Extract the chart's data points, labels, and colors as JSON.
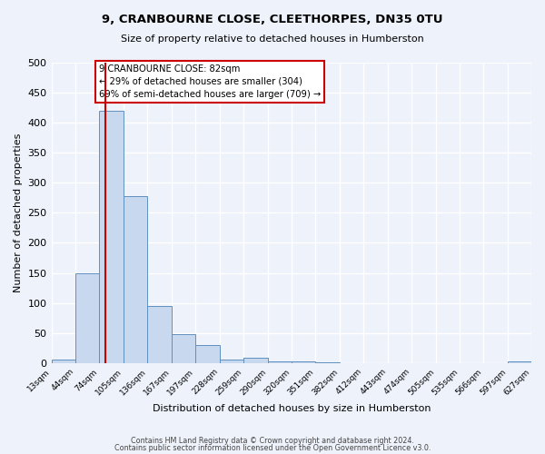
{
  "title": "9, CRANBOURNE CLOSE, CLEETHORPES, DN35 0TU",
  "subtitle": "Size of property relative to detached houses in Humberston",
  "xlabel": "Distribution of detached houses by size in Humberston",
  "ylabel": "Number of detached properties",
  "bar_edges": [
    13,
    44,
    74,
    105,
    136,
    167,
    197,
    228,
    259,
    290,
    320,
    351,
    382,
    412,
    443,
    474,
    505,
    535,
    566,
    597,
    627
  ],
  "bar_heights": [
    5,
    150,
    420,
    278,
    95,
    48,
    30,
    6,
    8,
    3,
    2,
    1,
    0,
    0,
    0,
    0,
    0,
    0,
    0,
    2
  ],
  "bar_color": "#c8d8ef",
  "bar_edge_color": "#6090c0",
  "reference_line_x": 82,
  "reference_line_color": "#cc0000",
  "annotation_line1": "9 CRANBOURNE CLOSE: 82sqm",
  "annotation_line2": "← 29% of detached houses are smaller (304)",
  "annotation_line3": "69% of semi-detached houses are larger (709) →",
  "ylim": [
    0,
    500
  ],
  "yticks": [
    0,
    50,
    100,
    150,
    200,
    250,
    300,
    350,
    400,
    450,
    500
  ],
  "background_color": "#eef2fb",
  "grid_color": "#ffffff",
  "footer_line1": "Contains HM Land Registry data © Crown copyright and database right 2024.",
  "footer_line2": "Contains public sector information licensed under the Open Government Licence v3.0."
}
